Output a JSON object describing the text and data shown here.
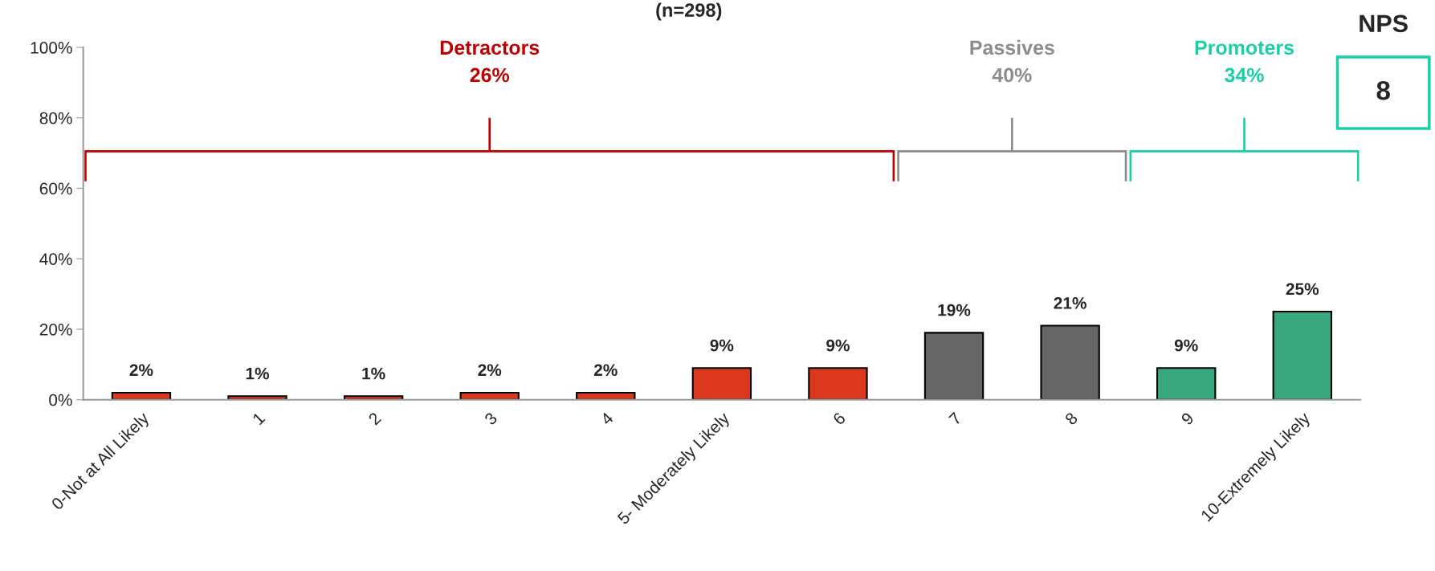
{
  "chart_data": {
    "type": "bar",
    "title": "(n=298)",
    "categories": [
      "0-Not at All Likely",
      "1",
      "2",
      "3",
      "4",
      "5- Moderately Likely",
      "6",
      "7",
      "8",
      "9",
      "10-Extremely Likely"
    ],
    "values": [
      2,
      1,
      1,
      2,
      2,
      9,
      9,
      19,
      21,
      9,
      25
    ],
    "colors": [
      "#d9381e",
      "#d9381e",
      "#d9381e",
      "#d9381e",
      "#d9381e",
      "#d9381e",
      "#d9381e",
      "#666666",
      "#666666",
      "#3aa87e",
      "#3aa87e"
    ],
    "value_labels": [
      "2%",
      "1%",
      "1%",
      "2%",
      "2%",
      "9%",
      "9%",
      "19%",
      "21%",
      "9%",
      "25%"
    ],
    "ylim": [
      0,
      100
    ],
    "yticks": [
      {
        "value": 0,
        "label": "0%"
      },
      {
        "value": 20,
        "label": "20%"
      },
      {
        "value": 40,
        "label": "40%"
      },
      {
        "value": 60,
        "label": "60%"
      },
      {
        "value": 80,
        "label": "80%"
      },
      {
        "value": 100,
        "label": "100%"
      }
    ],
    "grid": false,
    "legend": false,
    "annotations": [
      "Detractors\n26%",
      "Passives\n40%",
      "Promoters\n34%",
      "NPS",
      "8"
    ]
  }
}
